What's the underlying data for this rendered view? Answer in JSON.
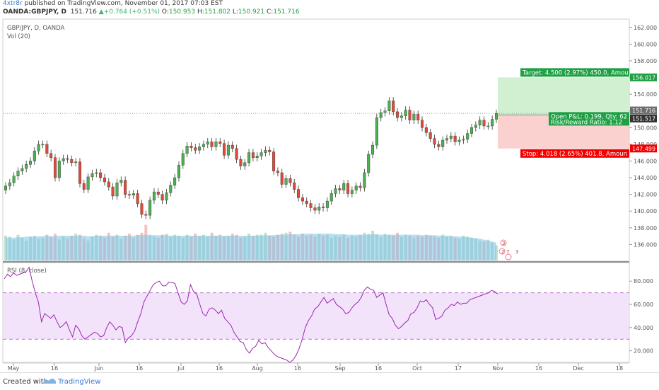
{
  "header": {
    "author": "4xtr8r",
    "published": " published on TradingView.com, November 01, 2017 07:03 EST",
    "symbol": "OANDA:GBPJPY, D",
    "last": "151.716",
    "change": "+0.764 (+0.51%)",
    "o_label": "O:",
    "o": "150.953",
    "h_label": "H:",
    "h": "151.802",
    "l_label": "L:",
    "l": "150.921",
    "c_label": "C:",
    "c": "151.716"
  },
  "footer": {
    "created_with": "Created with",
    "brand": "TradingView"
  },
  "chart_data": [
    {
      "type": "candlestick",
      "title": "GBP/JPY, D, OANDA",
      "volume_label": "Vol (20)",
      "ylim": [
        134,
        163
      ],
      "yticks": [
        136,
        138,
        140,
        142,
        144,
        146,
        148,
        150,
        152,
        154,
        156,
        158,
        160,
        162
      ],
      "ytick_labels": [
        "136.000",
        "138.000",
        "140.000",
        "142.000",
        "144.000",
        "146.000",
        "148.000",
        "150.000",
        "152.000",
        "154.000",
        "156.000",
        "158.000",
        "160.000",
        "162.000"
      ],
      "xticks": [
        "May",
        "16",
        "Jun",
        "16",
        "Jul",
        "16",
        "Aug",
        "16",
        "Sep",
        "16",
        "Oct",
        "17",
        "Nov",
        "16",
        "Dec",
        "18"
      ],
      "close": [
        143.0,
        143.4,
        144.2,
        144.8,
        145.1,
        145.6,
        146.0,
        147.2,
        148.0,
        148.0,
        146.9,
        146.4,
        144.0,
        146.0,
        146.3,
        146.2,
        145.8,
        145.9,
        143.3,
        142.6,
        144.1,
        144.5,
        144.6,
        144.0,
        143.5,
        142.9,
        141.8,
        143.4,
        143.7,
        142.0,
        141.9,
        142.1,
        140.9,
        139.6,
        139.5,
        141.3,
        142.3,
        142.0,
        141.3,
        142.2,
        143.1,
        144.0,
        145.5,
        146.9,
        147.8,
        147.6,
        147.3,
        147.7,
        148.0,
        148.3,
        147.7,
        148.3,
        148.1,
        146.7,
        147.9,
        147.5,
        146.2,
        145.4,
        145.8,
        147.0,
        146.4,
        146.6,
        147.0,
        147.3,
        147.1,
        144.8,
        144.6,
        143.2,
        143.9,
        143.4,
        142.6,
        141.6,
        141.2,
        140.9,
        140.4,
        140.1,
        140.5,
        140.4,
        141.2,
        142.1,
        142.7,
        142.5,
        143.3,
        142.1,
        142.5,
        143.0,
        142.8,
        144.6,
        146.8,
        147.9,
        151.2,
        151.8,
        152.0,
        153.2,
        151.9,
        151.2,
        151.4,
        152.1,
        150.9,
        151.6,
        150.9,
        150.0,
        149.4,
        148.7,
        148.0,
        147.7,
        148.5,
        148.7,
        149.0,
        148.3,
        148.5,
        148.6,
        149.3,
        150.0,
        150.3,
        150.9,
        150.2,
        150.2,
        151.0,
        151.7
      ],
      "volume": [
        2.5,
        2.4,
        2.1,
        2.6,
        2.3,
        2.0,
        2.4,
        2.5,
        2.2,
        2.3,
        2.6,
        2.4,
        2.7,
        2.1,
        2.4,
        2.2,
        2.5,
        2.7,
        2.6,
        2.2,
        2.0,
        2.4,
        2.6,
        2.5,
        2.3,
        2.8,
        2.4,
        2.6,
        2.2,
        2.5,
        2.7,
        2.3,
        2.6,
        2.8,
        3.6,
        2.5,
        2.4,
        2.3,
        2.6,
        2.7,
        2.4,
        2.6,
        2.5,
        2.3,
        2.6,
        2.4,
        2.7,
        2.5,
        2.6,
        2.4,
        2.8,
        2.5,
        2.6,
        2.4,
        2.5,
        2.7,
        2.6,
        2.3,
        2.4,
        2.7,
        2.5,
        2.6,
        2.6,
        2.8,
        2.5,
        2.4,
        2.6,
        2.7,
        2.8,
        2.9,
        2.6,
        2.4,
        2.7,
        2.5,
        2.6,
        2.4,
        2.7,
        2.5,
        2.6,
        2.3,
        2.5,
        2.4,
        2.6,
        2.3,
        2.5,
        2.4,
        2.6,
        2.8,
        2.7,
        3.0,
        2.6,
        2.4,
        2.7,
        2.6,
        2.5,
        2.8,
        2.4,
        2.6,
        2.5,
        2.3,
        2.5,
        2.4,
        2.6,
        2.5,
        2.4,
        2.3,
        2.6,
        2.4,
        2.5,
        2.3,
        2.2,
        2.5,
        2.4,
        2.3,
        2.2,
        2.0,
        1.9,
        2.1,
        1.8,
        1.5
      ],
      "volume_ma": [
        2.3,
        2.3,
        2.3,
        2.35,
        2.35,
        2.4,
        2.4,
        2.4,
        2.45,
        2.45,
        2.5,
        2.45,
        2.45,
        2.5,
        2.5,
        2.5,
        2.5,
        2.5,
        2.5,
        2.5,
        2.45,
        2.45,
        2.5,
        2.5,
        2.5,
        2.5,
        2.5,
        2.5,
        2.5,
        2.5,
        2.5,
        2.5,
        2.55,
        2.55,
        2.6,
        2.6,
        2.55,
        2.55,
        2.55,
        2.55,
        2.5,
        2.5,
        2.5,
        2.5,
        2.5,
        2.5,
        2.5,
        2.5,
        2.5,
        2.5,
        2.5,
        2.5,
        2.5,
        2.5,
        2.5,
        2.5,
        2.5,
        2.5,
        2.5,
        2.5,
        2.5,
        2.5,
        2.5,
        2.55,
        2.55,
        2.55,
        2.6,
        2.6,
        2.6,
        2.65,
        2.65,
        2.65,
        2.7,
        2.7,
        2.7,
        2.7,
        2.7,
        2.7,
        2.7,
        2.7,
        2.65,
        2.65,
        2.65,
        2.6,
        2.6,
        2.6,
        2.6,
        2.6,
        2.6,
        2.65,
        2.65,
        2.6,
        2.6,
        2.6,
        2.6,
        2.6,
        2.6,
        2.6,
        2.6,
        2.6,
        2.6,
        2.55,
        2.55,
        2.55,
        2.55,
        2.5,
        2.5,
        2.5,
        2.45,
        2.45,
        2.4,
        2.4,
        2.35,
        2.3,
        2.25,
        2.2,
        2.1,
        2.0,
        1.9,
        1.8
      ],
      "position": {
        "target_label": "Target: 4.500 (2.97%) 450.0, Amou",
        "target_price": "156.017",
        "stop_label": "Stop: 4.018 (2.65%) 401.8, Amoun",
        "stop_price": "147.499",
        "pnl_label": "Open P&L: 0.199, Qty: 62",
        "rr_label": "Risk/Reward Ratio: 1.12",
        "entry_price": "151.517",
        "last_price": "151.716",
        "target": 156.017,
        "stop": 147.499,
        "entry": 151.517,
        "last": 151.716
      },
      "annotations": [
        "3",
        "2",
        "7",
        "3"
      ]
    },
    {
      "type": "line",
      "title": "RSI (8, close)",
      "ylim": [
        10,
        96
      ],
      "yticks": [
        20,
        40,
        60,
        80
      ],
      "ytick_labels": [
        "20.000",
        "40.000",
        "60.000",
        "80.000"
      ],
      "band": [
        30,
        70
      ],
      "values": [
        82,
        86,
        84,
        87,
        85,
        86,
        87,
        88,
        92,
        80,
        70,
        62,
        45,
        52,
        50,
        48,
        51,
        45,
        40,
        42,
        45,
        38,
        32,
        42,
        39,
        33,
        30,
        32,
        34,
        36,
        35,
        32,
        33,
        40,
        45,
        42,
        38,
        41,
        40,
        27,
        31,
        33,
        37,
        45,
        52,
        62,
        67,
        72,
        77,
        79,
        80,
        76,
        76,
        79,
        79,
        78,
        70,
        62,
        60,
        63,
        77,
        71,
        69,
        60,
        52,
        50,
        56,
        57,
        55,
        52,
        55,
        48,
        45,
        42,
        36,
        32,
        28,
        27,
        21,
        18,
        22,
        24,
        29,
        26,
        27,
        23,
        20,
        17,
        15,
        14,
        13,
        12,
        10,
        12,
        16,
        22,
        30,
        40,
        46,
        50,
        56,
        58,
        62,
        66,
        61,
        63,
        65,
        60,
        58,
        56,
        52,
        53,
        57,
        60,
        62,
        66,
        72,
        75,
        73,
        72,
        66,
        68,
        70,
        60,
        51,
        48,
        42,
        39,
        41,
        44,
        46,
        52,
        53,
        57,
        63,
        62,
        64,
        60,
        57,
        47,
        48,
        50,
        55,
        57,
        60,
        59,
        62,
        60,
        61,
        61,
        64,
        65,
        66,
        67,
        68,
        69,
        70,
        72,
        71,
        69
      ]
    }
  ]
}
